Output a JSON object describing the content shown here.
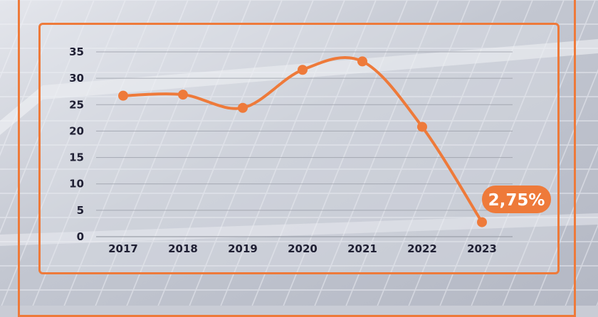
{
  "chart_data": {
    "type": "line",
    "categories": [
      "2017",
      "2018",
      "2019",
      "2020",
      "2021",
      "2022",
      "2023"
    ],
    "values": [
      26.7,
      26.9,
      24.4,
      31.6,
      33.2,
      20.8,
      2.75
    ],
    "y_ticks": [
      "0",
      "5",
      "10",
      "15",
      "20",
      "25",
      "30",
      "35"
    ],
    "ylim": [
      0,
      35
    ],
    "title": "",
    "xlabel": "",
    "ylabel": "",
    "grid": true,
    "callout": {
      "label": "2,75%",
      "category": "2023"
    }
  },
  "colors": {
    "accent": "#ee7a3a",
    "text": "#1f1f33",
    "grid": "#9a9ea8"
  }
}
